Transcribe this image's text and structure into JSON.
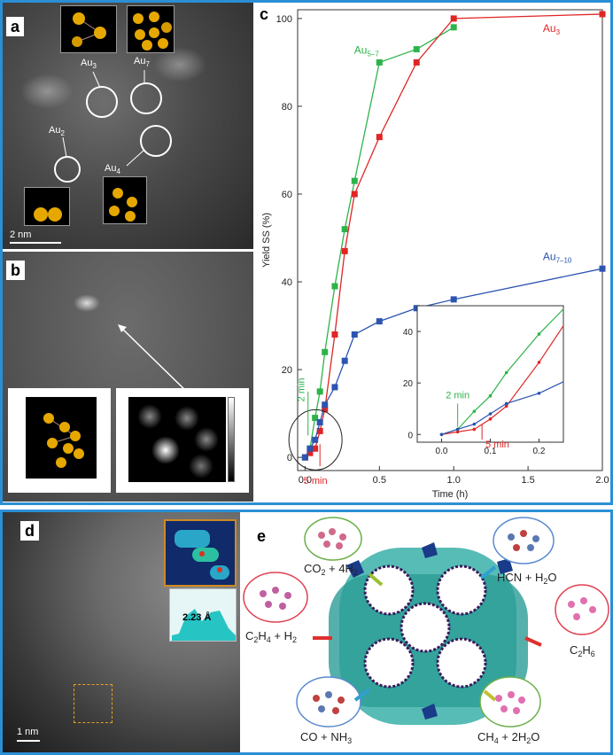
{
  "panel_a": {
    "label": "a",
    "scalebar": "2 nm",
    "clusters": [
      {
        "label_base": "Au",
        "label_sub": "3"
      },
      {
        "label_base": "Au",
        "label_sub": "7"
      },
      {
        "label_base": "Au",
        "label_sub": "2"
      },
      {
        "label_base": "Au",
        "label_sub": "4"
      }
    ]
  },
  "panel_b": {
    "label": "b"
  },
  "panel_c": {
    "label": "c"
  },
  "panel_d": {
    "label": "d",
    "scalebar": "1 nm",
    "profile_label": "2.23 Å"
  },
  "panel_e": {
    "label": "e",
    "reactions": [
      {
        "a": "CO",
        "a_sub": "2",
        "op": " + 4H",
        "b_sub": "2"
      },
      {
        "a": "HCN + H",
        "a_sub": "2",
        "op": "O",
        "b_sub": ""
      },
      {
        "a": "C",
        "a_sub": "2",
        "op": "H",
        "b_sub": "4",
        "tail": " + H",
        "tail_sub": "2"
      },
      {
        "a": "C",
        "a_sub": "2",
        "op": "H",
        "b_sub": "6"
      },
      {
        "a": "CO + NH",
        "a_sub": "3",
        "op": "",
        "b_sub": ""
      },
      {
        "a": "CH",
        "a_sub": "4",
        "op": " + 2H",
        "b_sub": "2",
        "tail": "O",
        "tail_sub": ""
      }
    ]
  },
  "chart_data": {
    "type": "line",
    "xlabel": "Time (h)",
    "ylabel": "Yield SS (%)",
    "xlim": [
      -0.05,
      2.0
    ],
    "ylim": [
      -3,
      102
    ],
    "xticks": [
      "0.0",
      "0.5",
      "1.0",
      "1.5",
      "2.0"
    ],
    "yticks": [
      "0",
      "20",
      "40",
      "60",
      "80",
      "100"
    ],
    "series": [
      {
        "name": "Au",
        "name_sub": "5–7",
        "color": "#2db34a",
        "x": [
          0.0,
          0.033,
          0.067,
          0.1,
          0.133,
          0.2,
          0.267,
          0.333,
          0.5,
          0.75,
          1.0
        ],
        "y": [
          0,
          2,
          9,
          15,
          24,
          39,
          52,
          63,
          90,
          93,
          98
        ]
      },
      {
        "name": "Au",
        "name_sub": "3",
        "color": "#e02525",
        "x": [
          0.0,
          0.033,
          0.067,
          0.1,
          0.133,
          0.2,
          0.267,
          0.333,
          0.5,
          0.75,
          1.0,
          2.0
        ],
        "y": [
          0,
          1,
          2,
          6,
          11,
          28,
          47,
          60,
          73,
          90,
          100,
          101
        ]
      },
      {
        "name": "Au",
        "name_sub": "7–10",
        "color": "#2c54b0",
        "x": [
          0.0,
          0.033,
          0.067,
          0.1,
          0.133,
          0.2,
          0.267,
          0.333,
          0.5,
          0.75,
          1.0,
          2.0
        ],
        "y": [
          0,
          2,
          4,
          8,
          12,
          16,
          22,
          28,
          31,
          34,
          36,
          43
        ]
      }
    ],
    "annotations": [
      {
        "text": "2 min",
        "color": "#2db34a"
      },
      {
        "text": "5 min",
        "color": "#e02525"
      }
    ],
    "inset": {
      "xlim": [
        -0.05,
        0.25
      ],
      "ylim": [
        -3,
        50
      ],
      "xticks": [
        "0.0",
        "0.1",
        "0.2"
      ],
      "yticks": [
        "0",
        "20",
        "40"
      ],
      "annotations": [
        {
          "text": "2 min",
          "color": "#2db34a"
        },
        {
          "text": "5 min",
          "color": "#e02525"
        }
      ]
    }
  }
}
